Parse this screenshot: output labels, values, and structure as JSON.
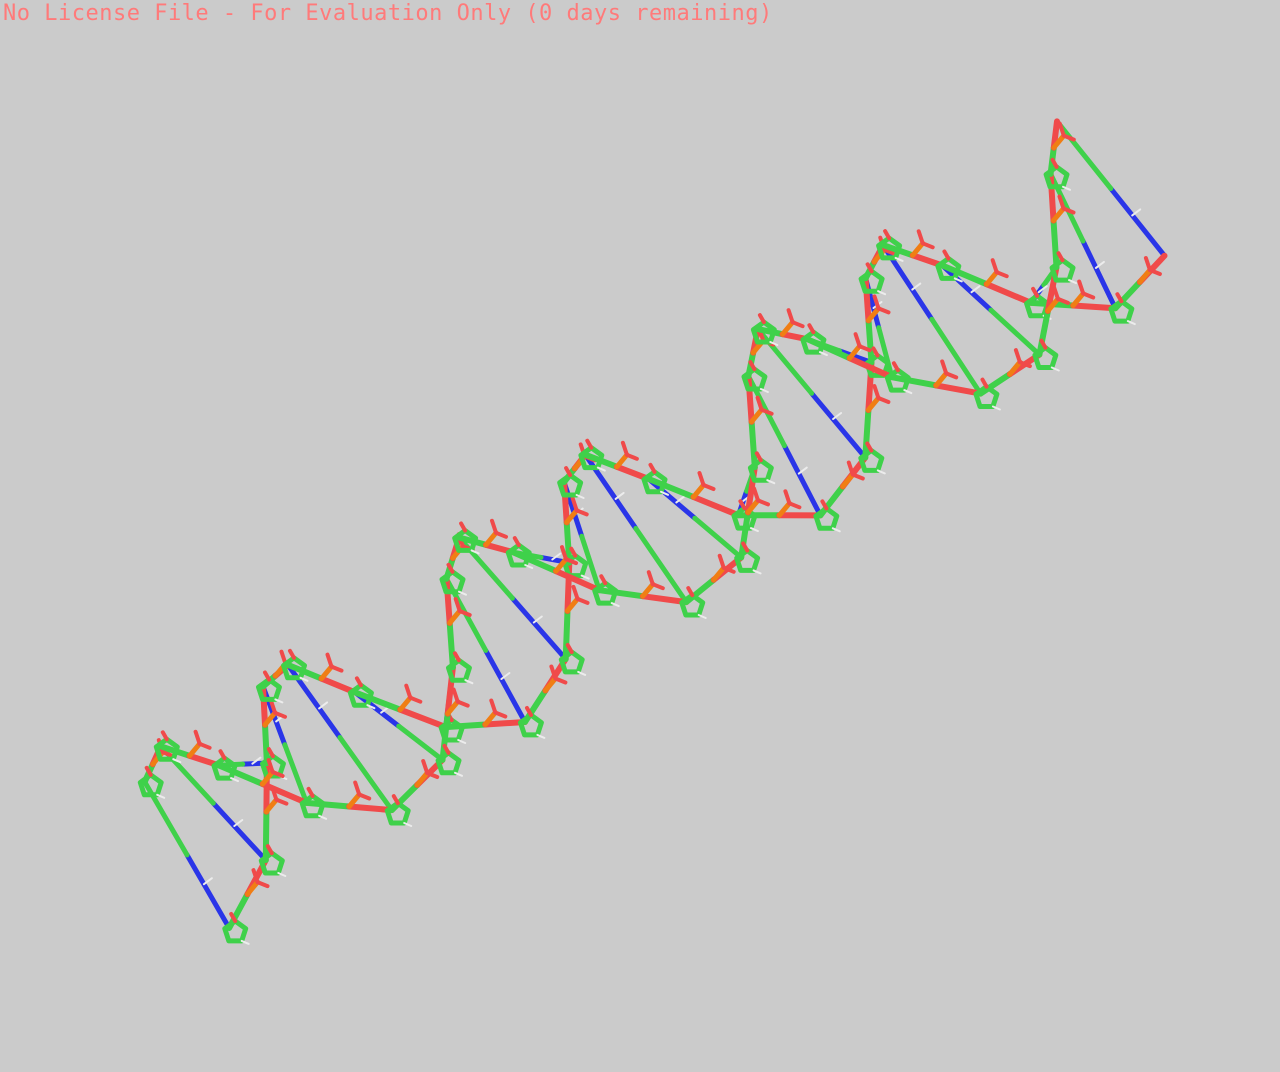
{
  "viewer": {
    "license_notice": "No License File - For Evaluation Only (0 days remaining)",
    "background": "#cbcbcb",
    "render_style": "sticks",
    "element_colors": {
      "carbon": "#3fd14a",
      "nitrogen": "#2a35e8",
      "oxygen": "#f04a4a",
      "phosphorus": "#f07e14",
      "hydrogen": "#ececec"
    }
  }
}
